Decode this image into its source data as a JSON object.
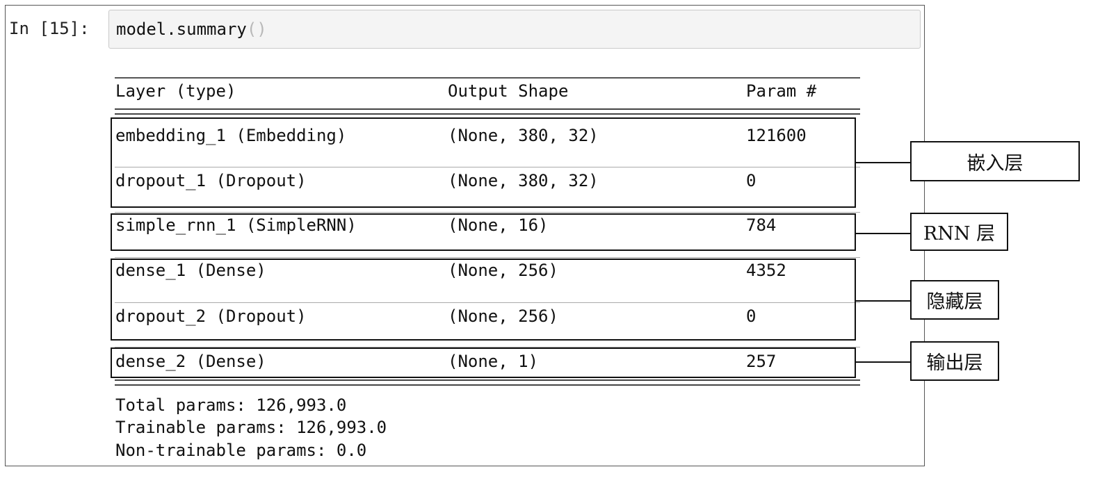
{
  "cell": {
    "prompt": "In [15]:",
    "code_text": "model.summary",
    "code_parens": "()"
  },
  "table": {
    "columns": [
      "Layer (type)",
      "Output Shape",
      "Param #"
    ],
    "rows": [
      {
        "layer": "embedding_1 (Embedding)",
        "shape": "(None, 380, 32)",
        "params": "121600"
      },
      {
        "layer": "dropout_1 (Dropout)",
        "shape": "(None, 380, 32)",
        "params": "0"
      },
      {
        "layer": "simple_rnn_1 (SimpleRNN)",
        "shape": "(None, 16)",
        "params": "784"
      },
      {
        "layer": "dense_1 (Dense)",
        "shape": "(None, 256)",
        "params": "4352"
      },
      {
        "layer": "dropout_2 (Dropout)",
        "shape": "(None, 256)",
        "params": "0"
      },
      {
        "layer": "dense_2 (Dense)",
        "shape": "(None, 1)",
        "params": "257"
      }
    ]
  },
  "summary": {
    "total": "Total params: 126,993.0",
    "trainable": "Trainable params: 126,993.0",
    "non_trainable": "Non-trainable params: 0.0"
  },
  "annotations": {
    "embedding": "嵌入层",
    "rnn": "RNN 层",
    "hidden": "隐藏层",
    "output": "输出层"
  }
}
